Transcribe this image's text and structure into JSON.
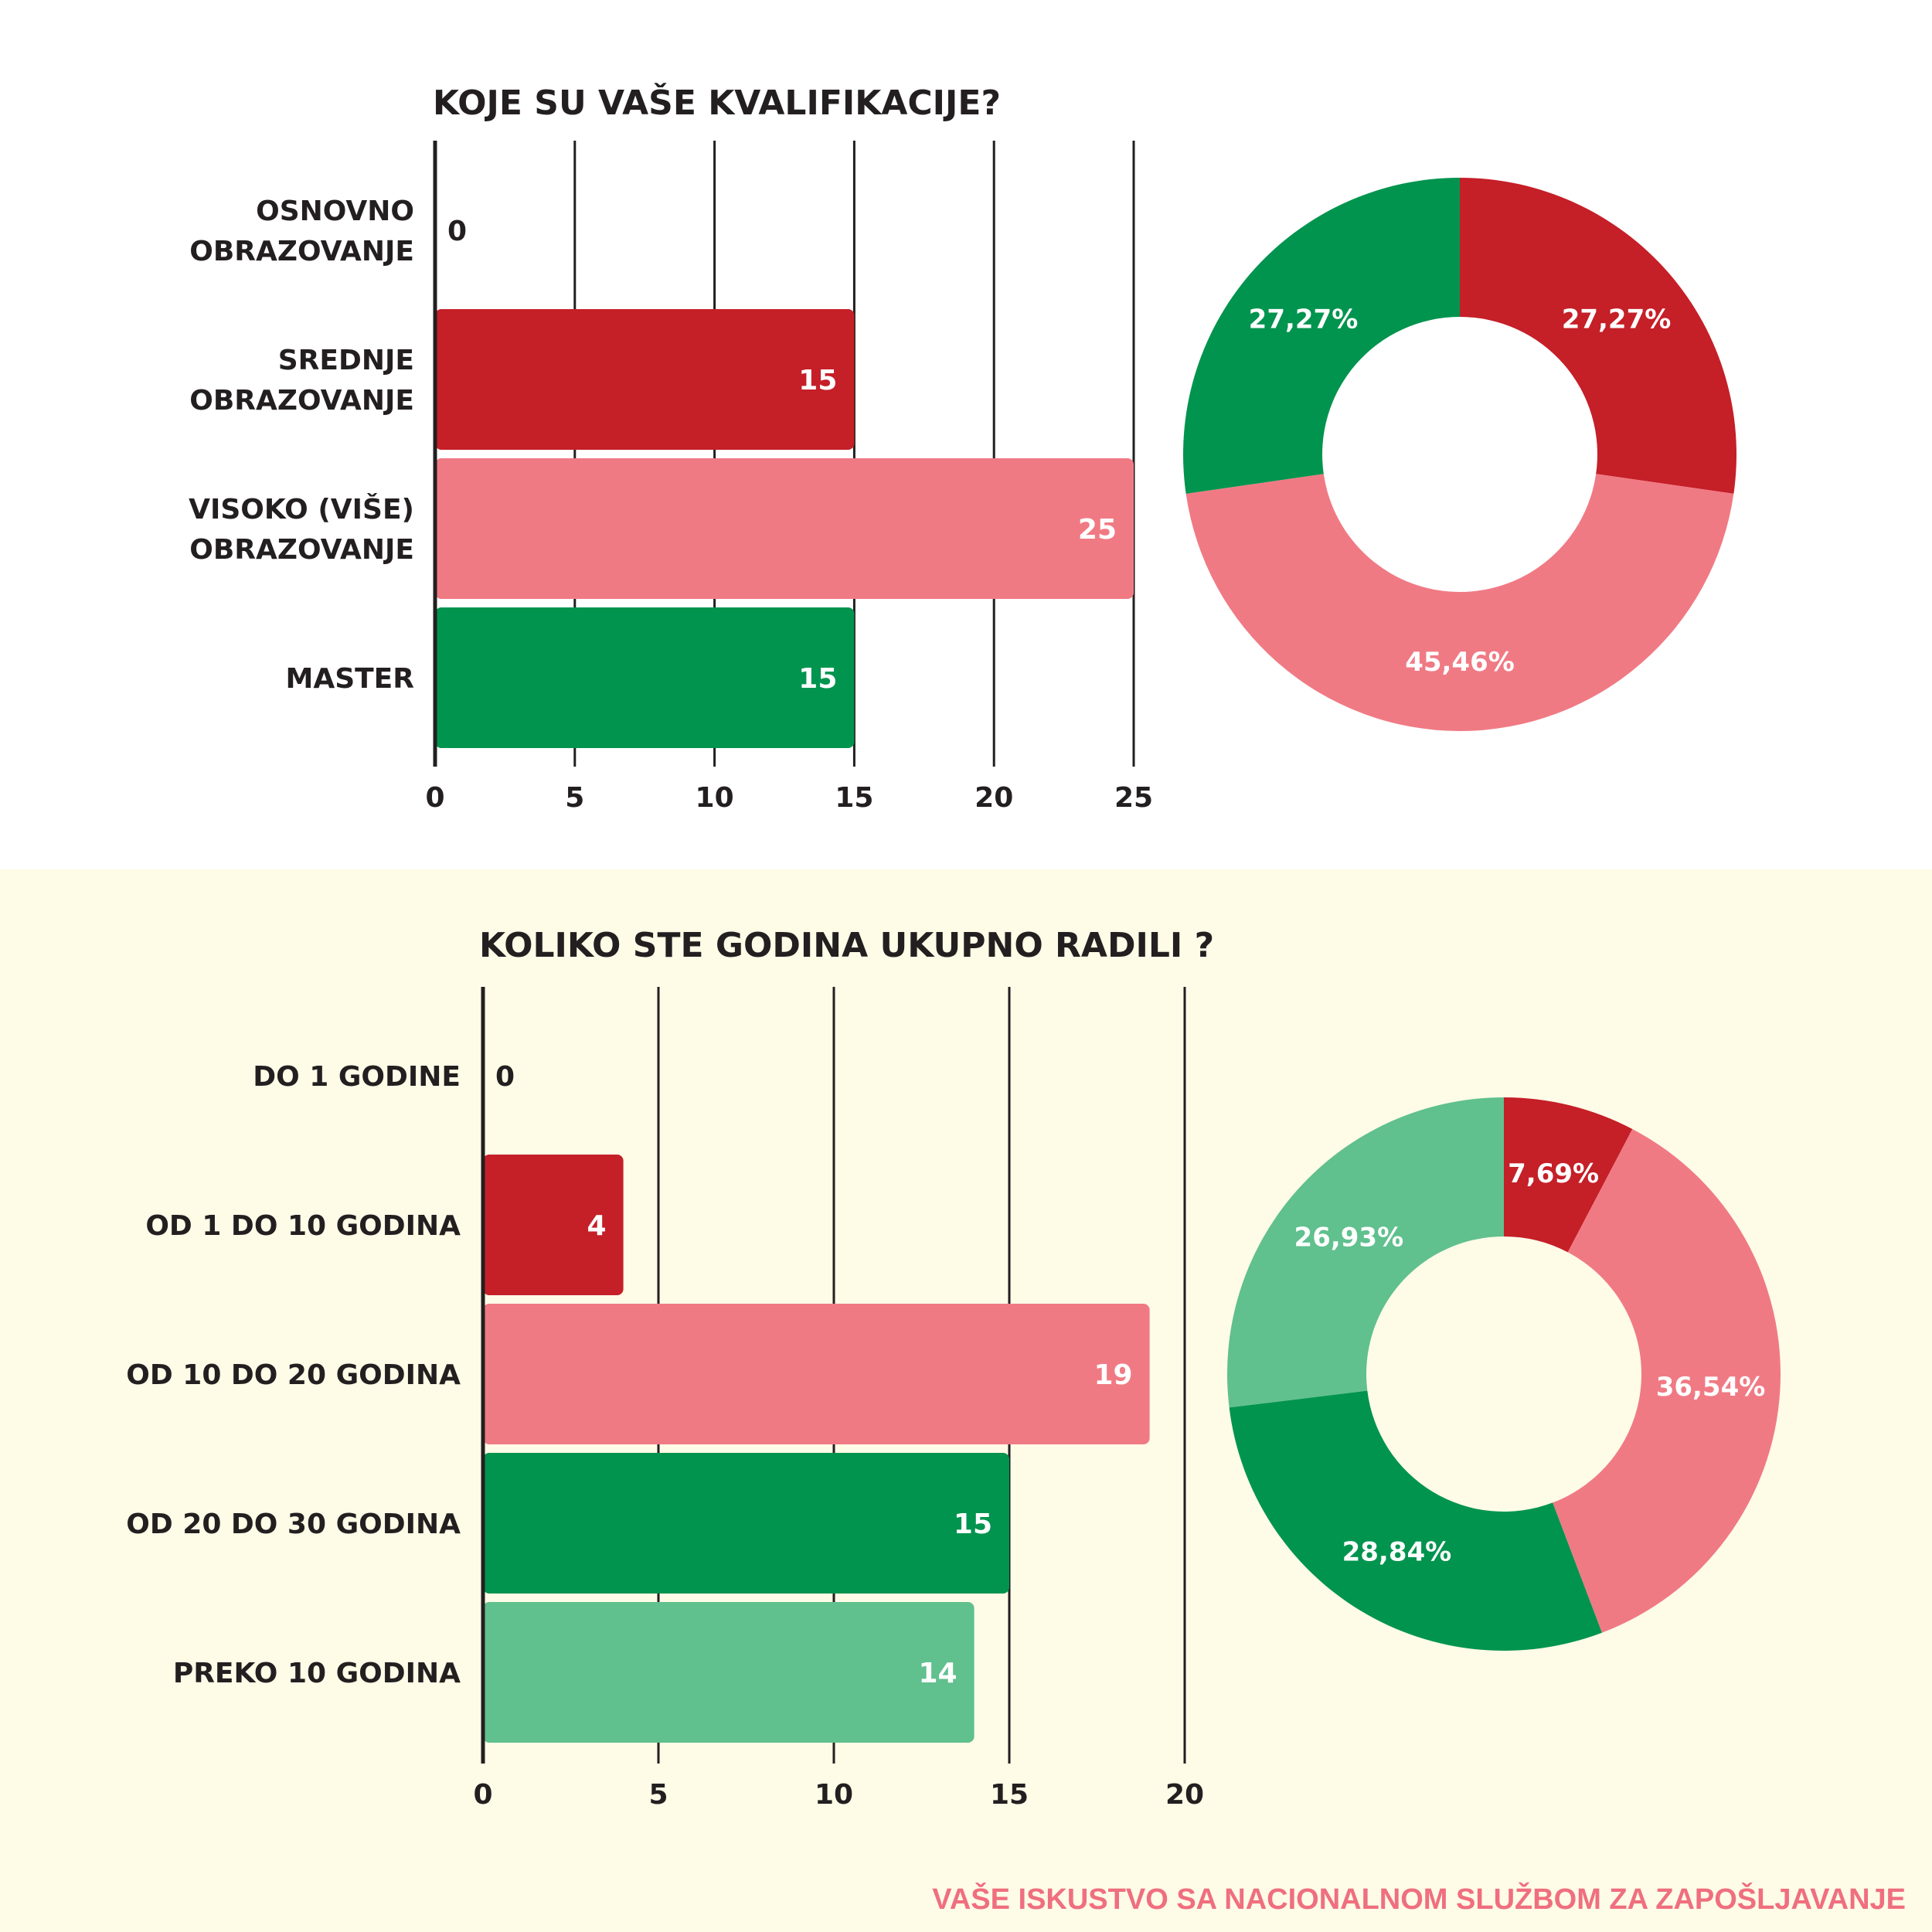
{
  "colors": {
    "dark_red": "#c51f28",
    "pink": "#f07a84",
    "green": "#00944e",
    "light_green": "#60c08e",
    "ink": "#231f20",
    "panel_bg": "#fefbe7",
    "footer_text": "#ef6f7f"
  },
  "chart_data": [
    {
      "type": "bar",
      "orientation": "horizontal",
      "title": "KOJE SU VAŠE KVALIFIKACIJE?",
      "categories": [
        [
          "OSNOVNO",
          "OBRAZOVANJE"
        ],
        [
          "SREDNJE",
          "OBRAZOVANJE"
        ],
        [
          "VISOKO (VIŠE)",
          "OBRAZOVANJE"
        ],
        [
          "MASTER"
        ]
      ],
      "values": [
        0,
        15,
        25,
        15
      ],
      "value_labels": [
        "0",
        "15",
        "25",
        "15"
      ],
      "bar_colors": [
        "#c51f28",
        "#c51f28",
        "#f07a84",
        "#00944e"
      ],
      "xlim": [
        0,
        25
      ],
      "xticks": [
        0,
        5,
        10,
        15,
        20,
        25
      ],
      "grid": true
    },
    {
      "type": "pie",
      "donut": true,
      "slices": [
        {
          "label": "27,27%",
          "value": 27.27,
          "color": "#c51f28"
        },
        {
          "label": "45,46%",
          "value": 45.46,
          "color": "#f07a84"
        },
        {
          "label": "27,27%",
          "value": 27.27,
          "color": "#00944e"
        }
      ]
    },
    {
      "type": "bar",
      "orientation": "horizontal",
      "title": "KOLIKO STE GODINA UKUPNO RADILI ?",
      "categories": [
        [
          "DO 1 GODINE"
        ],
        [
          "OD 1 DO 10 GODINA"
        ],
        [
          "OD 10 DO 20 GODINA"
        ],
        [
          "OD 20 DO 30 GODINA"
        ],
        [
          "PREKO 10 GODINA"
        ]
      ],
      "values": [
        0,
        4,
        19,
        15,
        14
      ],
      "value_labels": [
        "0",
        "4",
        "19",
        "15",
        "14"
      ],
      "bar_colors": [
        "#c51f28",
        "#c51f28",
        "#f07a84",
        "#00944e",
        "#60c08e"
      ],
      "xlim": [
        0,
        20
      ],
      "xticks": [
        0,
        5,
        10,
        15,
        20
      ],
      "grid": true
    },
    {
      "type": "pie",
      "donut": true,
      "slices": [
        {
          "label": "7,69%",
          "value": 7.69,
          "color": "#c51f28"
        },
        {
          "label": "36,54%",
          "value": 36.54,
          "color": "#f07a84"
        },
        {
          "label": "28,84%",
          "value": 28.84,
          "color": "#00944e"
        },
        {
          "label": "26,93%",
          "value": 26.93,
          "color": "#60c08e"
        }
      ]
    }
  ],
  "footer": {
    "text": "VAŠE ISKUSTVO SA NACIONALNOM SLUŽBOM ZA ZAPOŠLJAVANJE"
  }
}
